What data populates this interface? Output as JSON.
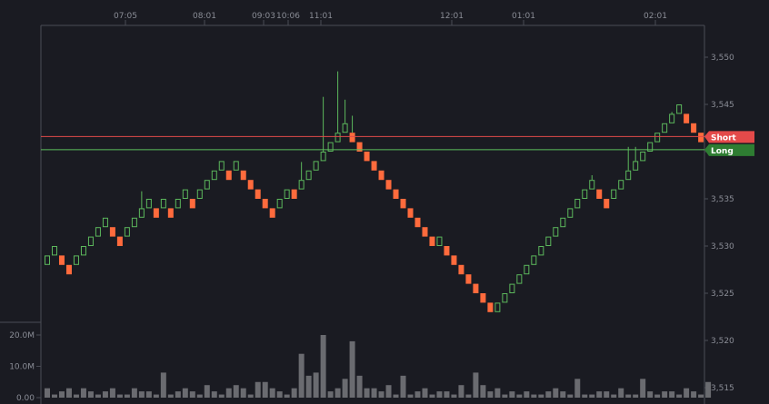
{
  "chart_data": {
    "type": "renko",
    "title": "",
    "brick_size": 1,
    "x_ticks": [
      "07:05",
      "08:01",
      "09:03",
      "10:06",
      "11:01",
      "12:01",
      "01:01",
      "02:01"
    ],
    "y_ticks": [
      "3,550",
      "3,545",
      "3,540",
      "3,535",
      "3,530",
      "3,525",
      "3,520",
      "3,515"
    ],
    "ylim": [
      3514.5,
      3553
    ],
    "volume_ticks": [
      "20.0M",
      "10.0M",
      "0.00"
    ],
    "volume_max": 25,
    "colors": {
      "up": "#5cb85c",
      "down": "#ff6b3d",
      "background": "#1a1b22",
      "volume": "#6a6b70",
      "short_line": "#e04a4a",
      "long_line": "#5cc05c"
    },
    "bricks": [
      {
        "dir": "up",
        "low": 3528,
        "high": 3529
      },
      {
        "dir": "up",
        "low": 3529,
        "high": 3530
      },
      {
        "dir": "down",
        "low": 3528,
        "high": 3529
      },
      {
        "dir": "down",
        "low": 3527,
        "high": 3528
      },
      {
        "dir": "up",
        "low": 3528,
        "high": 3529
      },
      {
        "dir": "up",
        "low": 3529,
        "high": 3530
      },
      {
        "dir": "up",
        "low": 3530,
        "high": 3531
      },
      {
        "dir": "up",
        "low": 3531,
        "high": 3532
      },
      {
        "dir": "up",
        "low": 3532,
        "high": 3533
      },
      {
        "dir": "down",
        "low": 3531,
        "high": 3532
      },
      {
        "dir": "down",
        "low": 3530,
        "high": 3531
      },
      {
        "dir": "up",
        "low": 3531,
        "high": 3532
      },
      {
        "dir": "up",
        "low": 3532,
        "high": 3533
      },
      {
        "dir": "up",
        "low": 3533,
        "high": 3534
      },
      {
        "dir": "up",
        "low": 3534,
        "high": 3535
      },
      {
        "dir": "down",
        "low": 3533,
        "high": 3534
      },
      {
        "dir": "up",
        "low": 3534,
        "high": 3535
      },
      {
        "dir": "down",
        "low": 3533,
        "high": 3534
      },
      {
        "dir": "up",
        "low": 3534,
        "high": 3535
      },
      {
        "dir": "up",
        "low": 3535,
        "high": 3536
      },
      {
        "dir": "down",
        "low": 3534,
        "high": 3535
      },
      {
        "dir": "up",
        "low": 3535,
        "high": 3536
      },
      {
        "dir": "up",
        "low": 3536,
        "high": 3537
      },
      {
        "dir": "up",
        "low": 3537,
        "high": 3538
      },
      {
        "dir": "up",
        "low": 3538,
        "high": 3539
      },
      {
        "dir": "down",
        "low": 3537,
        "high": 3538
      },
      {
        "dir": "up",
        "low": 3538,
        "high": 3539
      },
      {
        "dir": "down",
        "low": 3537,
        "high": 3538
      },
      {
        "dir": "down",
        "low": 3536,
        "high": 3537
      },
      {
        "dir": "down",
        "low": 3535,
        "high": 3536
      },
      {
        "dir": "down",
        "low": 3534,
        "high": 3535
      },
      {
        "dir": "down",
        "low": 3533,
        "high": 3534
      },
      {
        "dir": "up",
        "low": 3534,
        "high": 3535
      },
      {
        "dir": "up",
        "low": 3535,
        "high": 3536
      },
      {
        "dir": "down",
        "low": 3535,
        "high": 3536
      },
      {
        "dir": "up",
        "low": 3536,
        "high": 3537
      },
      {
        "dir": "up",
        "low": 3537,
        "high": 3538
      },
      {
        "dir": "up",
        "low": 3538,
        "high": 3539
      },
      {
        "dir": "up",
        "low": 3539,
        "high": 3540
      },
      {
        "dir": "up",
        "low": 3540,
        "high": 3541
      },
      {
        "dir": "up",
        "low": 3541,
        "high": 3542
      },
      {
        "dir": "up",
        "low": 3542,
        "high": 3543
      },
      {
        "dir": "down",
        "low": 3541,
        "high": 3542
      },
      {
        "dir": "down",
        "low": 3540,
        "high": 3541
      },
      {
        "dir": "down",
        "low": 3539,
        "high": 3540
      },
      {
        "dir": "down",
        "low": 3538,
        "high": 3539
      },
      {
        "dir": "down",
        "low": 3537,
        "high": 3538
      },
      {
        "dir": "down",
        "low": 3536,
        "high": 3537
      },
      {
        "dir": "down",
        "low": 3535,
        "high": 3536
      },
      {
        "dir": "down",
        "low": 3534,
        "high": 3535
      },
      {
        "dir": "down",
        "low": 3533,
        "high": 3534
      },
      {
        "dir": "down",
        "low": 3532,
        "high": 3533
      },
      {
        "dir": "down",
        "low": 3531,
        "high": 3532
      },
      {
        "dir": "down",
        "low": 3530,
        "high": 3531
      },
      {
        "dir": "up",
        "low": 3530,
        "high": 3531
      },
      {
        "dir": "down",
        "low": 3529,
        "high": 3530
      },
      {
        "dir": "down",
        "low": 3528,
        "high": 3529
      },
      {
        "dir": "down",
        "low": 3527,
        "high": 3528
      },
      {
        "dir": "down",
        "low": 3526,
        "high": 3527
      },
      {
        "dir": "down",
        "low": 3525,
        "high": 3526
      },
      {
        "dir": "down",
        "low": 3524,
        "high": 3525
      },
      {
        "dir": "down",
        "low": 3523,
        "high": 3524
      },
      {
        "dir": "up",
        "low": 3523,
        "high": 3524
      },
      {
        "dir": "up",
        "low": 3524,
        "high": 3525
      },
      {
        "dir": "up",
        "low": 3525,
        "high": 3526
      },
      {
        "dir": "up",
        "low": 3526,
        "high": 3527
      },
      {
        "dir": "up",
        "low": 3527,
        "high": 3528
      },
      {
        "dir": "up",
        "low": 3528,
        "high": 3529
      },
      {
        "dir": "up",
        "low": 3529,
        "high": 3530
      },
      {
        "dir": "up",
        "low": 3530,
        "high": 3531
      },
      {
        "dir": "up",
        "low": 3531,
        "high": 3532
      },
      {
        "dir": "up",
        "low": 3532,
        "high": 3533
      },
      {
        "dir": "up",
        "low": 3533,
        "high": 3534
      },
      {
        "dir": "up",
        "low": 3534,
        "high": 3535
      },
      {
        "dir": "up",
        "low": 3535,
        "high": 3536
      },
      {
        "dir": "up",
        "low": 3536,
        "high": 3537
      },
      {
        "dir": "down",
        "low": 3535,
        "high": 3536
      },
      {
        "dir": "down",
        "low": 3534,
        "high": 3535
      },
      {
        "dir": "up",
        "low": 3535,
        "high": 3536
      },
      {
        "dir": "up",
        "low": 3536,
        "high": 3537
      },
      {
        "dir": "up",
        "low": 3537,
        "high": 3538
      },
      {
        "dir": "up",
        "low": 3538,
        "high": 3539
      },
      {
        "dir": "up",
        "low": 3539,
        "high": 3540
      },
      {
        "dir": "up",
        "low": 3540,
        "high": 3541
      },
      {
        "dir": "up",
        "low": 3541,
        "high": 3542
      },
      {
        "dir": "up",
        "low": 3542,
        "high": 3543
      },
      {
        "dir": "up",
        "low": 3543,
        "high": 3544
      },
      {
        "dir": "up",
        "low": 3544,
        "high": 3545
      },
      {
        "dir": "down",
        "low": 3543,
        "high": 3544
      },
      {
        "dir": "down",
        "low": 3542,
        "high": 3543
      },
      {
        "dir": "down",
        "low": 3541,
        "high": 3542
      }
    ],
    "wicks": [
      {
        "brick": 13,
        "high": 3535.8
      },
      {
        "brick": 35,
        "high": 3538.9
      },
      {
        "brick": 38,
        "high": 3545.8
      },
      {
        "brick": 40,
        "high": 3548.5
      },
      {
        "brick": 41,
        "high": 3545.5
      },
      {
        "brick": 42,
        "high": 3543.8
      },
      {
        "brick": 75,
        "high": 3537.5
      },
      {
        "brick": 80,
        "high": 3540.5
      },
      {
        "brick": 81,
        "high": 3540.5
      },
      {
        "brick": 86,
        "high": 3544.2
      }
    ],
    "volume": [
      3,
      1,
      2,
      3,
      1,
      3,
      2,
      1,
      2,
      3,
      1,
      1,
      3,
      2,
      2,
      1,
      8,
      1,
      2,
      3,
      2,
      1,
      4,
      2,
      1,
      3,
      4,
      3,
      1,
      5,
      5,
      3,
      2,
      1,
      3,
      14,
      7,
      8,
      20,
      2,
      3,
      6,
      18,
      7,
      3,
      3,
      2,
      4,
      1,
      7,
      1,
      2,
      3,
      1,
      2,
      2,
      1,
      4,
      1,
      8,
      4,
      2,
      3,
      1,
      2,
      1,
      2,
      1,
      1,
      2,
      3,
      2,
      1,
      6,
      1,
      1,
      2,
      2,
      1,
      3,
      1,
      1,
      6,
      2,
      1,
      2,
      2,
      1,
      3,
      2,
      1,
      5
    ],
    "lines": [
      {
        "name": "Short",
        "value": 3541.6
      },
      {
        "name": "Long",
        "value": 3540.2
      }
    ]
  }
}
